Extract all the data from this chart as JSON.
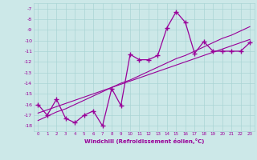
{
  "x": [
    0,
    1,
    2,
    3,
    4,
    5,
    6,
    7,
    8,
    9,
    10,
    11,
    12,
    13,
    14,
    15,
    16,
    17,
    18,
    19,
    20,
    21,
    22,
    23
  ],
  "y_main": [
    -16,
    -17,
    -15.5,
    -17.3,
    -17.7,
    -17,
    -16.6,
    -18,
    -14.5,
    -16.1,
    -11.3,
    -11.8,
    -11.8,
    -11.4,
    -8.8,
    -7.3,
    -8.3,
    -11.2,
    -10.1,
    -11,
    -11,
    -11,
    -11,
    -10.2
  ],
  "y_trend1": [
    -17.5,
    -17.1,
    -16.7,
    -16.4,
    -16.0,
    -15.6,
    -15.2,
    -14.8,
    -14.4,
    -14.0,
    -13.7,
    -13.3,
    -12.9,
    -12.5,
    -12.1,
    -11.7,
    -11.4,
    -11.0,
    -10.6,
    -10.2,
    -9.8,
    -9.5,
    -9.1,
    -8.7
  ],
  "y_trend2": [
    -16.8,
    -16.5,
    -16.2,
    -15.9,
    -15.6,
    -15.3,
    -15.0,
    -14.7,
    -14.4,
    -14.1,
    -13.8,
    -13.5,
    -13.2,
    -12.9,
    -12.6,
    -12.3,
    -12.0,
    -11.7,
    -11.4,
    -11.1,
    -10.8,
    -10.5,
    -10.2,
    -9.9
  ],
  "line_color": "#990099",
  "bg_color": "#cce8e8",
  "grid_color": "#aad4d4",
  "xlabel": "Windchill (Refroidissement éolien,°C)",
  "ylabel_ticks": [
    -7,
    -8,
    -9,
    -10,
    -11,
    -12,
    -13,
    -14,
    -15,
    -16,
    -17,
    -18
  ],
  "ylim": [
    -18.5,
    -6.5
  ],
  "xlim": [
    -0.5,
    23.5
  ]
}
